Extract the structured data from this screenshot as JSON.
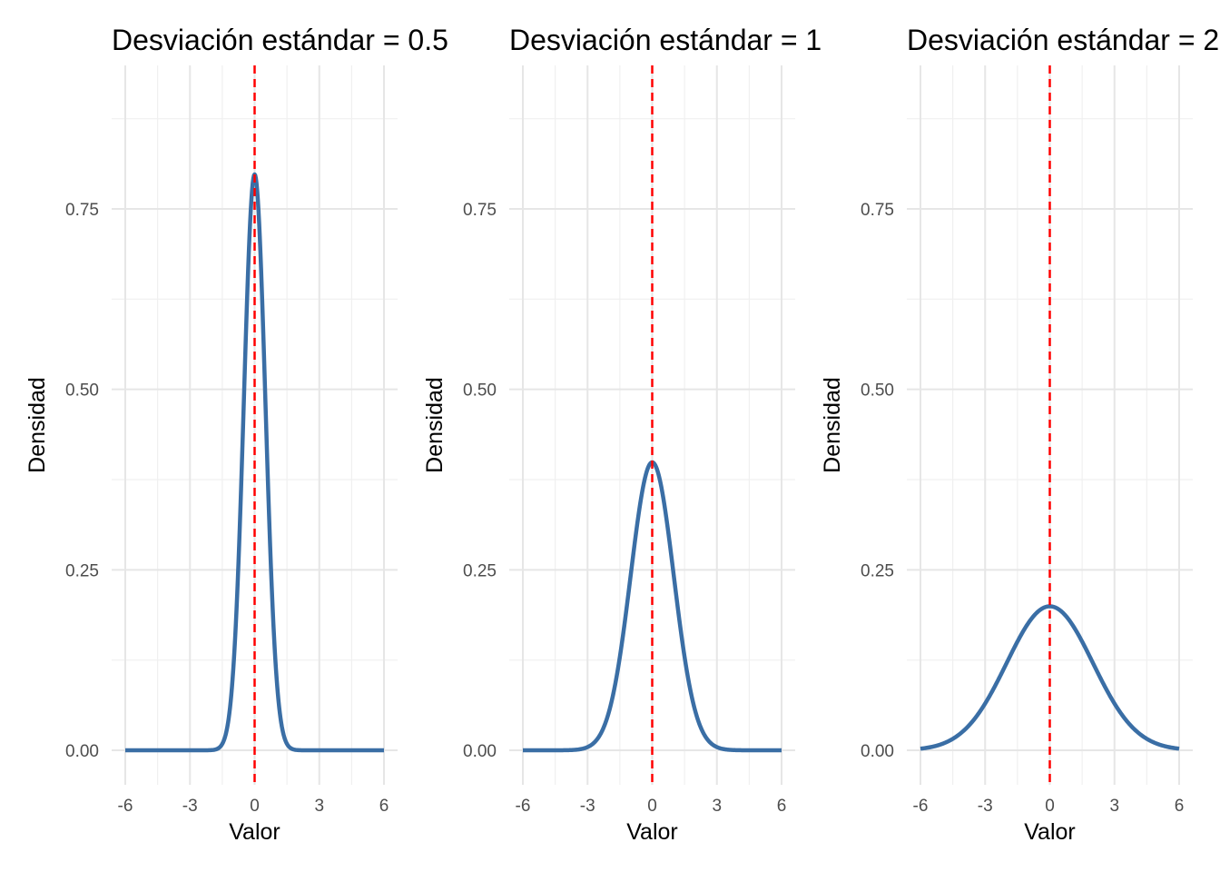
{
  "chart_data": [
    {
      "type": "line",
      "title": "Desviación estándar = 0.5",
      "xlabel": "Valor",
      "ylabel": "Densidad",
      "xlim": [
        -6,
        6
      ],
      "ylim": [
        0,
        0.9
      ],
      "x_ticks": [
        -6,
        -3,
        0,
        3,
        6
      ],
      "x_tick_labels": [
        "-6",
        "-3",
        "0",
        "3",
        "6"
      ],
      "y_ticks": [
        0,
        0.25,
        0.5,
        0.75
      ],
      "y_tick_labels": [
        "0.00",
        "0.25",
        "0.50",
        "0.75"
      ],
      "grid": true,
      "series": [
        {
          "distribution": "normal",
          "mean": 0,
          "sd": 0.5,
          "color": "#3a6ea5"
        }
      ],
      "reference_line": {
        "x": 0,
        "style": "dashed",
        "color": "#ff0000"
      }
    },
    {
      "type": "line",
      "title": "Desviación estándar = 1",
      "xlabel": "Valor",
      "ylabel": "Densidad",
      "xlim": [
        -6,
        6
      ],
      "ylim": [
        0,
        0.9
      ],
      "x_ticks": [
        -6,
        -3,
        0,
        3,
        6
      ],
      "x_tick_labels": [
        "-6",
        "-3",
        "0",
        "3",
        "6"
      ],
      "y_ticks": [
        0,
        0.25,
        0.5,
        0.75
      ],
      "y_tick_labels": [
        "0.00",
        "0.25",
        "0.50",
        "0.75"
      ],
      "grid": true,
      "series": [
        {
          "distribution": "normal",
          "mean": 0,
          "sd": 1,
          "color": "#3a6ea5"
        }
      ],
      "reference_line": {
        "x": 0,
        "style": "dashed",
        "color": "#ff0000"
      }
    },
    {
      "type": "line",
      "title": "Desviación estándar = 2",
      "xlabel": "Valor",
      "ylabel": "Densidad",
      "xlim": [
        -6,
        6
      ],
      "ylim": [
        0,
        0.9
      ],
      "x_ticks": [
        -6,
        -3,
        0,
        3,
        6
      ],
      "x_tick_labels": [
        "-6",
        "-3",
        "0",
        "3",
        "6"
      ],
      "y_ticks": [
        0,
        0.25,
        0.5,
        0.75
      ],
      "y_tick_labels": [
        "0.00",
        "0.25",
        "0.50",
        "0.75"
      ],
      "grid": true,
      "series": [
        {
          "distribution": "normal",
          "mean": 0,
          "sd": 2,
          "color": "#3a6ea5"
        }
      ],
      "reference_line": {
        "x": 0,
        "style": "dashed",
        "color": "#ff0000"
      }
    }
  ]
}
